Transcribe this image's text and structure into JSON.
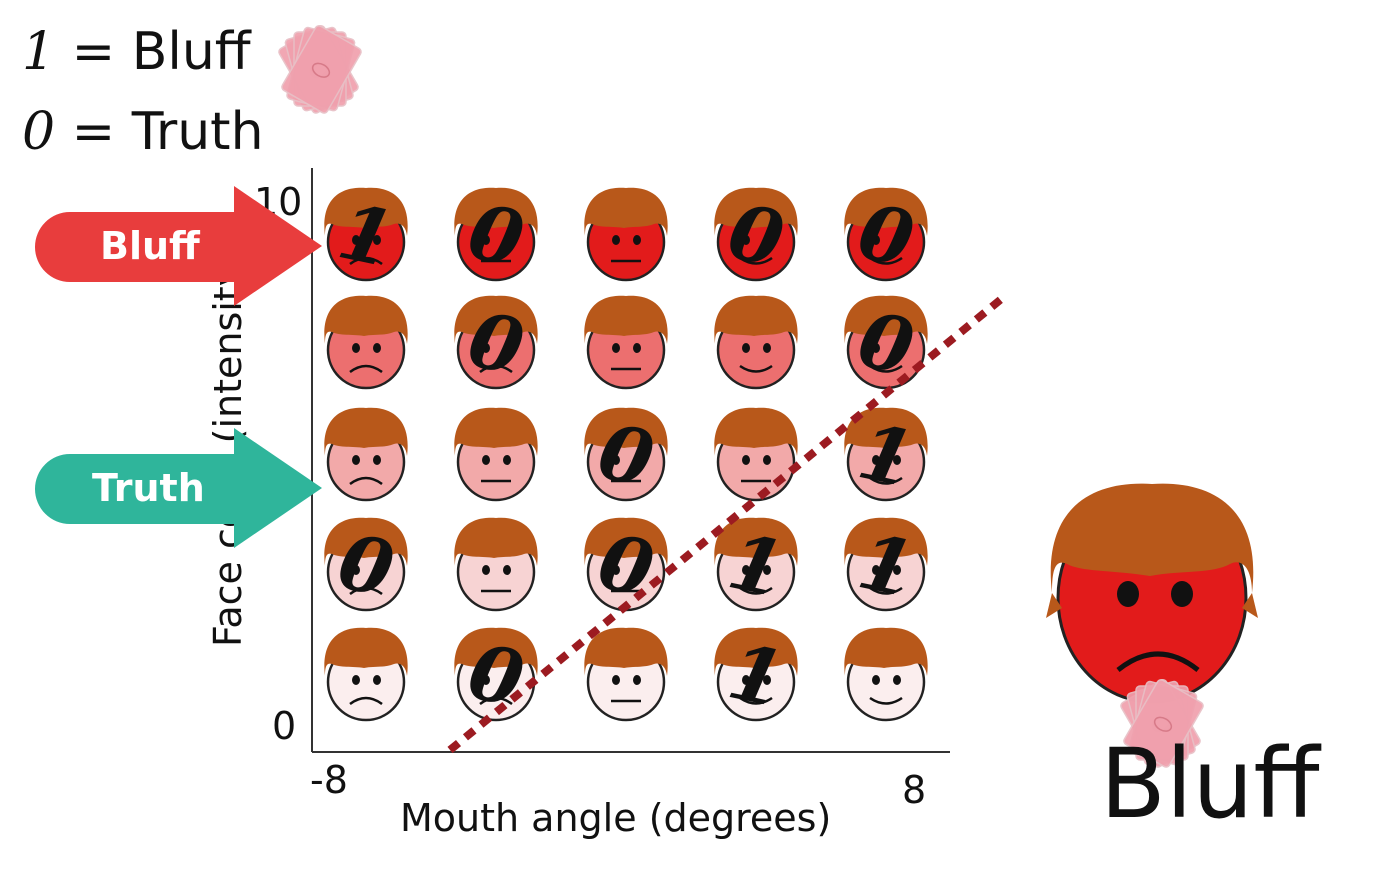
{
  "legend": {
    "bluff_digit": "1",
    "bluff_text": "= Bluff",
    "truth_digit": "0",
    "truth_text": "= Truth"
  },
  "axes": {
    "xlabel": "Mouth angle (degrees)",
    "ylabel": "Face color (intensity)",
    "x_min_label": "-8",
    "x_max_label": "8",
    "y_min_label": "0",
    "y_max_label": "10"
  },
  "arrows": {
    "bluff": "Bluff",
    "truth": "Truth"
  },
  "example": {
    "label": "Bluff"
  },
  "colors": {
    "hair": "#b8581a",
    "face_intensity": [
      "#fbeeee",
      "#f7d3d3",
      "#f2a9a9",
      "#ec6f6f",
      "#e21b1b"
    ],
    "bluff_arrow": "#e83d3d",
    "truth_arrow": "#2fb59b",
    "boundary": "#9c1b21",
    "card": "#f0a0ad"
  },
  "grid": {
    "rows": [
      {
        "row": 4,
        "mouths": [
          "frown",
          "flat",
          "flat",
          "smile",
          "smile"
        ],
        "labels": [
          "1",
          "0",
          "",
          "0",
          "0"
        ]
      },
      {
        "row": 3,
        "mouths": [
          "frown",
          "frown",
          "flat",
          "smile",
          "smile"
        ],
        "labels": [
          "",
          "0",
          "",
          "",
          "0"
        ]
      },
      {
        "row": 2,
        "mouths": [
          "frown",
          "flat",
          "flat",
          "flat",
          "smile"
        ],
        "labels": [
          "",
          "",
          "0",
          "",
          "1"
        ]
      },
      {
        "row": 1,
        "mouths": [
          "frown",
          "flat",
          "flat",
          "smile",
          "smile"
        ],
        "labels": [
          "0",
          "",
          "0",
          "1",
          "1"
        ]
      },
      {
        "row": 0,
        "mouths": [
          "frown",
          "frown",
          "flat",
          "smile",
          "smile"
        ],
        "labels": [
          "",
          "0",
          "",
          "1",
          ""
        ]
      }
    ]
  }
}
